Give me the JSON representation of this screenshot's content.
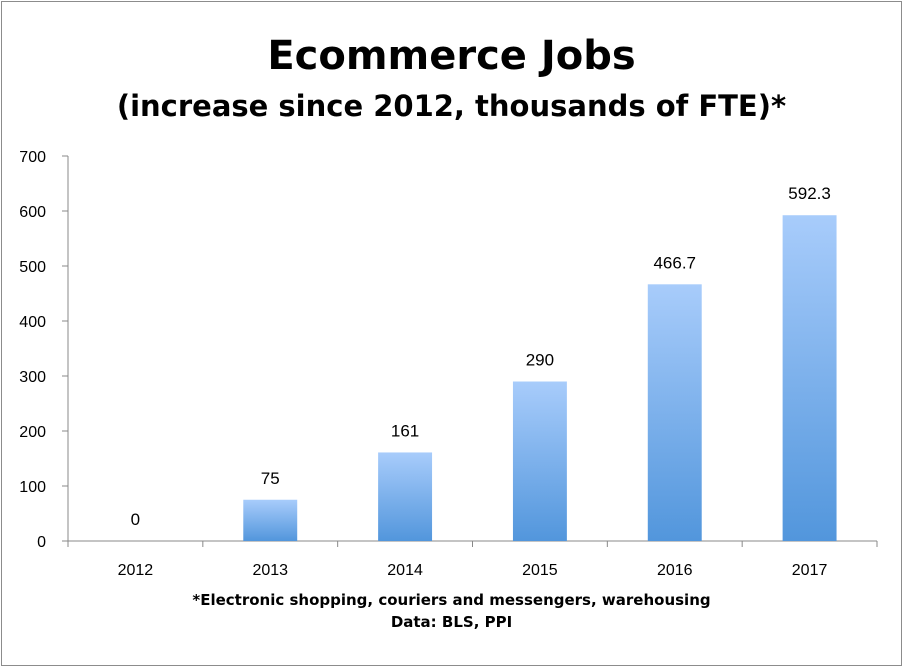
{
  "chart_data": {
    "type": "bar",
    "title": "Ecommerce Jobs",
    "subtitle": "(increase since 2012, thousands of FTE)*",
    "categories": [
      "2012",
      "2013",
      "2014",
      "2015",
      "2016",
      "2017"
    ],
    "values": [
      0,
      75,
      161,
      290,
      466.7,
      592.3
    ],
    "value_labels": [
      "0",
      "75",
      "161",
      "290",
      "466.7",
      "592.3"
    ],
    "ylim": [
      0,
      700
    ],
    "yticks": [
      0,
      100,
      200,
      300,
      400,
      500,
      600,
      700
    ],
    "grid": false,
    "legend": "none",
    "bar_color_top": "#a8ccfb",
    "bar_color_bottom": "#5296dc",
    "footnote": "*Electronic shopping, couriers and messengers, warehousing",
    "source": "Data: BLS, PPI"
  }
}
